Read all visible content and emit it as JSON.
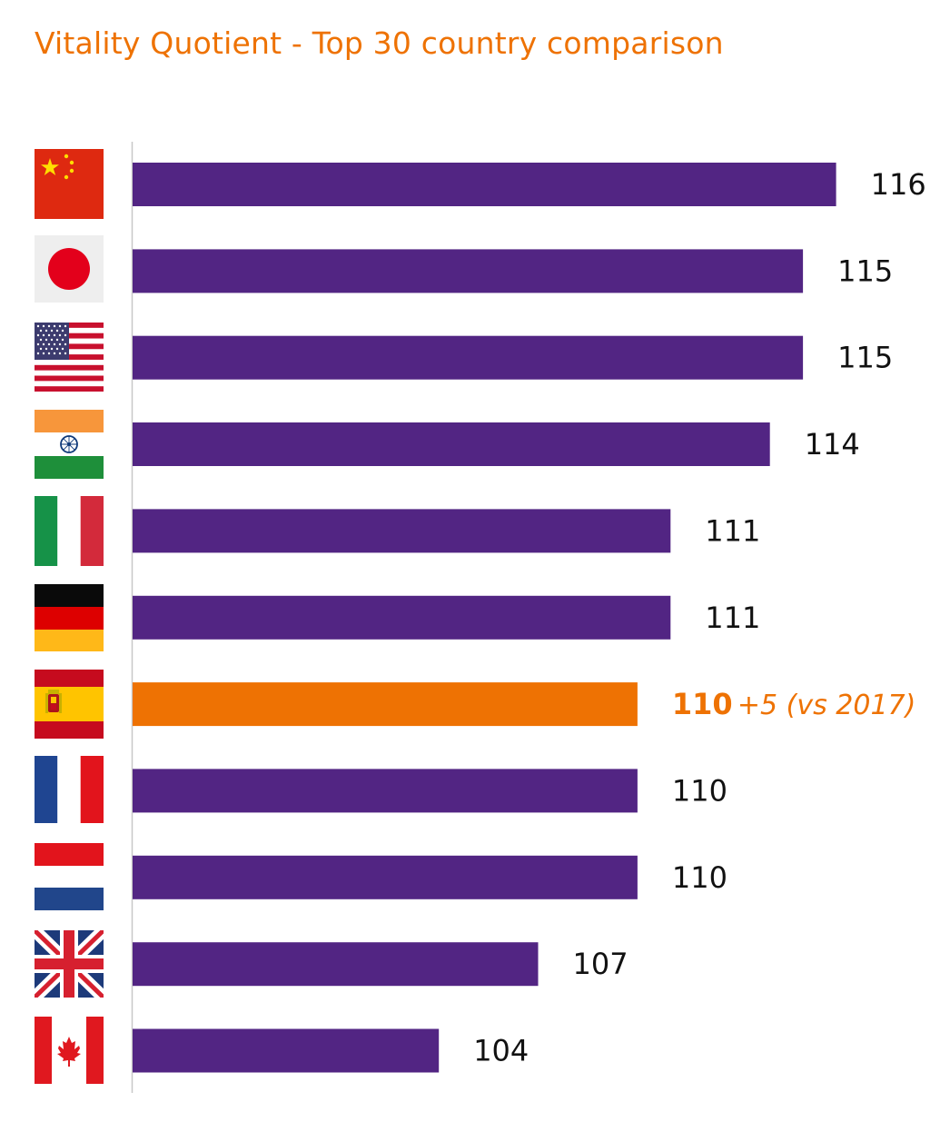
{
  "chart_data": {
    "type": "bar",
    "orientation": "horizontal",
    "title": "Vitality Quotient - Top 30 country comparison",
    "categories": [
      "China",
      "Japan",
      "United States",
      "India",
      "Italy",
      "Germany",
      "Spain",
      "France",
      "Netherlands",
      "United Kingdom",
      "Canada"
    ],
    "values": [
      116,
      115,
      115,
      114,
      111,
      111,
      110,
      110,
      110,
      107,
      104
    ],
    "highlight_index": 6,
    "highlight_note": "+5 (vs 2017)",
    "colors": {
      "bar": "#522583",
      "highlight": "#ee7203",
      "axis": "#c8c8c8",
      "label": "#111111"
    },
    "grid": false,
    "legend": "none"
  },
  "flags": [
    "china-flag-icon",
    "japan-flag-icon",
    "usa-flag-icon",
    "india-flag-icon",
    "italy-flag-icon",
    "germany-flag-icon",
    "spain-flag-icon",
    "france-flag-icon",
    "netherlands-flag-icon",
    "uk-flag-icon",
    "canada-flag-icon"
  ]
}
